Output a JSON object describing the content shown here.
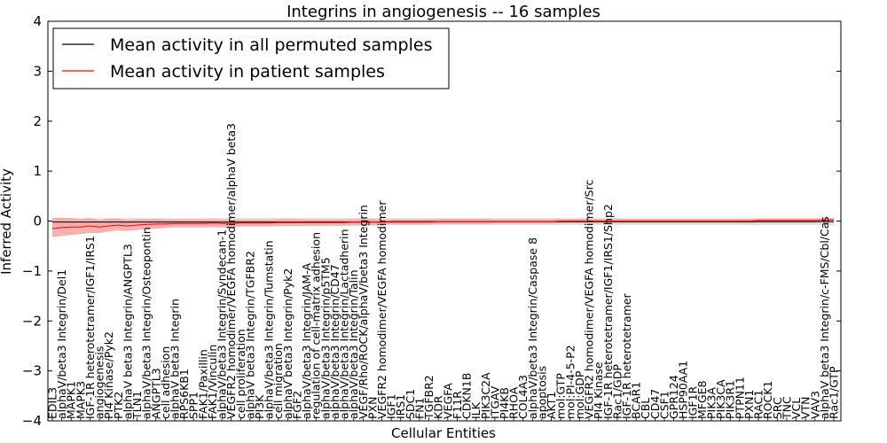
{
  "chart_data": {
    "type": "line",
    "title": "Integrins in angiogenesis -- 16 samples",
    "xlabel": "Cellular Entities",
    "ylabel": "Inferred Activity",
    "ylim": [
      -4,
      4
    ],
    "yticks": [
      -4,
      -3,
      -2,
      -1,
      0,
      1,
      2,
      3,
      4
    ],
    "grid": false,
    "legend_position": "top-left",
    "categories": [
      "EDIL3",
      "alphaV/beta3 Integrin/Del1",
      "MAPK1",
      "MAPK3",
      "IGF-1R heterotetramer/IGF1/IRS1",
      "angiogenesis",
      "PI4 Kinase/Pyk2",
      "PTK2",
      "alphaV beta3 Integrin/ANGPTL3",
      "TLN1",
      "alphaV/beta3 Integrin/Osteopontin",
      "ANGPTL3",
      "cell adhesion",
      "alphaV beta3 Integrin",
      "RPS6KB1",
      "SPP1",
      "FAK1/Paxillin",
      "FAK1/Vinculin",
      "alphaV/beta3 Integrin/Syndecan-1",
      "VEGFR2 homodimer/VEGFA homodimer/alphaV beta3",
      "cell proliferation",
      "alphaV beta3 Integrin/TGFBR2",
      "PI3K",
      "alphaV/beta3 Integrin/Tumstatin",
      "cell migration",
      "alphaV beta3 Integrin/Pyk2",
      "FGF2",
      "alphaV/beta3 Integrin/JAM-A",
      "regulation of cell-matrix adhesion",
      "alphaV/beta3 Integrin/p5TM5",
      "alphaV/beta3 Integrin/CD47",
      "alphaV/beta3 Integrin/Lactadherin",
      "alphaV/beta3 Integrin/Talin",
      "VEGF/Rho/ROCK/alphaV/beta3 Integrin",
      "PXN",
      "VEGFR2 homodimer/VEGFA homodimer",
      "IGF1",
      "IRS1",
      "SDC1",
      "FN1",
      "TGFBR2",
      "KDR",
      "VEGFA",
      "F11R",
      "CDKN1B",
      "ILK",
      "PIK3C2A",
      "ITGAV",
      "PI4KB",
      "RHOA",
      "COL4A3",
      "alphaV/beta3 Integrin/Caspase 8",
      "apoptosis",
      "AKT1",
      "mol:GTP",
      "mol:PI-4-5-P2",
      "mol:GDP",
      "VEGFR2 homodimer/VEGFA homodimer/Src",
      "PI4 Kinase",
      "IGF-1R heterotetramer/IGF1/IRS1/Shp2",
      "Rac1/GDP",
      "IGF-1R heterotetramer",
      "BCAR1",
      "CBL",
      "CD47",
      "CSF1",
      "GPR124",
      "HSP90AA1",
      "IGF1R",
      "MFGE8",
      "PIK3A",
      "PIK3CA",
      "PIK3R1",
      "PTPN11",
      "PXN1",
      "RAC1",
      "ROCK1",
      "SRC",
      "TNC",
      "VCL",
      "VTN",
      "VAV3",
      "alphaV beta3 Integrin/c-FMS/Cbl/Cas",
      "Rac1/GTP"
    ],
    "series": [
      {
        "name": "Mean activity in all permuted samples",
        "color": "#000000",
        "values": [
          -0.02,
          -0.02,
          -0.02,
          -0.02,
          -0.02,
          -0.02,
          -0.02,
          -0.02,
          -0.02,
          -0.02,
          -0.02,
          -0.02,
          -0.02,
          -0.02,
          -0.02,
          -0.02,
          -0.02,
          -0.02,
          -0.02,
          -0.02,
          -0.02,
          -0.02,
          -0.02,
          -0.02,
          -0.02,
          -0.02,
          -0.02,
          -0.02,
          -0.02,
          -0.02,
          -0.02,
          -0.02,
          -0.02,
          -0.02,
          -0.02,
          -0.02,
          -0.01,
          -0.01,
          -0.01,
          -0.01,
          -0.01,
          -0.01,
          -0.01,
          -0.01,
          -0.01,
          -0.01,
          -0.01,
          -0.01,
          -0.01,
          -0.01,
          -0.01,
          -0.01,
          -0.01,
          -0.01,
          -0.01,
          -0.01,
          -0.01,
          -0.01,
          -0.01,
          -0.01,
          -0.01,
          -0.01,
          -0.01,
          -0.01,
          -0.01,
          -0.01,
          -0.01,
          -0.01,
          -0.01,
          -0.01,
          -0.01,
          -0.01,
          -0.01,
          -0.01,
          -0.01,
          -0.01,
          -0.01,
          -0.01,
          -0.01,
          -0.01,
          -0.01,
          -0.01,
          -0.01,
          -0.01
        ],
        "lower": [
          -0.1,
          -0.1,
          -0.1,
          -0.1,
          -0.1,
          -0.1,
          -0.1,
          -0.1,
          -0.1,
          -0.1,
          -0.1,
          -0.1,
          -0.1,
          -0.1,
          -0.1,
          -0.1,
          -0.1,
          -0.1,
          -0.1,
          -0.1,
          -0.1,
          -0.1,
          -0.1,
          -0.1,
          -0.1,
          -0.1,
          -0.1,
          -0.1,
          -0.1,
          -0.1,
          -0.1,
          -0.1,
          -0.1,
          -0.1,
          -0.1,
          -0.1,
          -0.08,
          -0.08,
          -0.08,
          -0.08,
          -0.08,
          -0.08,
          -0.08,
          -0.08,
          -0.08,
          -0.08,
          -0.08,
          -0.08,
          -0.08,
          -0.08,
          -0.08,
          -0.08,
          -0.08,
          -0.08,
          -0.08,
          -0.08,
          -0.08,
          -0.08,
          -0.08,
          -0.08,
          -0.08,
          -0.08,
          -0.08,
          -0.08,
          -0.08,
          -0.08,
          -0.08,
          -0.08,
          -0.08,
          -0.08,
          -0.08,
          -0.08,
          -0.08,
          -0.08,
          -0.08,
          -0.08,
          -0.08,
          -0.08,
          -0.08,
          -0.08,
          -0.08,
          -0.08,
          -0.08,
          -0.08
        ],
        "upper": [
          0.06,
          0.06,
          0.06,
          0.06,
          0.06,
          0.06,
          0.06,
          0.06,
          0.06,
          0.06,
          0.06,
          0.06,
          0.06,
          0.06,
          0.06,
          0.06,
          0.06,
          0.06,
          0.06,
          0.06,
          0.06,
          0.06,
          0.06,
          0.06,
          0.06,
          0.06,
          0.06,
          0.06,
          0.06,
          0.06,
          0.06,
          0.06,
          0.06,
          0.06,
          0.06,
          0.06,
          0.06,
          0.06,
          0.06,
          0.06,
          0.06,
          0.06,
          0.06,
          0.06,
          0.06,
          0.06,
          0.06,
          0.06,
          0.06,
          0.06,
          0.06,
          0.06,
          0.06,
          0.06,
          0.06,
          0.06,
          0.06,
          0.06,
          0.06,
          0.06,
          0.06,
          0.06,
          0.06,
          0.06,
          0.06,
          0.06,
          0.06,
          0.06,
          0.06,
          0.06,
          0.06,
          0.06,
          0.06,
          0.06,
          0.06,
          0.06,
          0.06,
          0.06,
          0.06,
          0.06,
          0.06,
          0.06,
          0.06,
          0.06
        ],
        "band_color": "#cccccc"
      },
      {
        "name": "Mean activity in patient samples",
        "color": "#ff0000",
        "values": [
          -0.15,
          -0.13,
          -0.12,
          -0.12,
          -0.1,
          -0.12,
          -0.1,
          -0.08,
          -0.1,
          -0.08,
          -0.07,
          -0.06,
          -0.06,
          -0.05,
          -0.05,
          -0.05,
          -0.05,
          -0.04,
          -0.05,
          -0.05,
          -0.04,
          -0.04,
          -0.04,
          -0.04,
          -0.03,
          -0.03,
          -0.03,
          -0.03,
          -0.03,
          -0.03,
          -0.03,
          -0.03,
          -0.02,
          -0.02,
          -0.02,
          -0.02,
          -0.02,
          -0.02,
          -0.02,
          -0.02,
          -0.02,
          -0.01,
          -0.01,
          -0.01,
          -0.01,
          -0.01,
          -0.01,
          -0.01,
          -0.01,
          -0.01,
          -0.01,
          -0.01,
          -0.01,
          -0.01,
          0,
          0,
          0,
          0,
          0,
          0,
          0,
          0,
          0,
          0,
          0,
          0,
          0,
          0,
          0,
          0,
          0,
          0,
          0,
          0,
          0,
          0.01,
          0.01,
          0.01,
          0.01,
          0.01,
          0.01,
          0.01,
          0.02,
          0.02
        ],
        "lower": [
          -0.32,
          -0.3,
          -0.28,
          -0.26,
          -0.24,
          -0.24,
          -0.21,
          -0.19,
          -0.2,
          -0.18,
          -0.16,
          -0.15,
          -0.14,
          -0.13,
          -0.13,
          -0.13,
          -0.13,
          -0.12,
          -0.13,
          -0.13,
          -0.11,
          -0.11,
          -0.11,
          -0.11,
          -0.1,
          -0.1,
          -0.1,
          -0.09,
          -0.09,
          -0.09,
          -0.09,
          -0.09,
          -0.08,
          -0.08,
          -0.08,
          -0.07,
          -0.07,
          -0.07,
          -0.07,
          -0.07,
          -0.07,
          -0.06,
          -0.06,
          -0.06,
          -0.06,
          -0.06,
          -0.06,
          -0.05,
          -0.05,
          -0.05,
          -0.05,
          -0.05,
          -0.05,
          -0.05,
          -0.04,
          -0.04,
          -0.04,
          -0.04,
          -0.04,
          -0.04,
          -0.04,
          -0.04,
          -0.04,
          -0.04,
          -0.04,
          -0.04,
          -0.04,
          -0.04,
          -0.04,
          -0.04,
          -0.04,
          -0.04,
          -0.04,
          -0.04,
          -0.04,
          -0.03,
          -0.03,
          -0.03,
          -0.03,
          -0.03,
          -0.03,
          -0.03,
          -0.02,
          -0.02
        ],
        "upper": [
          0.06,
          0.07,
          0.06,
          0.04,
          0.06,
          0.02,
          0.05,
          0.05,
          0.02,
          0.04,
          0.04,
          0.04,
          0.03,
          0.03,
          0.03,
          0.03,
          0.03,
          0.04,
          0.03,
          0.03,
          0.03,
          0.03,
          0.03,
          0.03,
          0.04,
          0.04,
          0.04,
          0.03,
          0.03,
          0.03,
          0.03,
          0.03,
          0.04,
          0.04,
          0.04,
          0.03,
          0.03,
          0.03,
          0.03,
          0.03,
          0.03,
          0.04,
          0.04,
          0.04,
          0.04,
          0.04,
          0.04,
          0.03,
          0.03,
          0.03,
          0.03,
          0.03,
          0.03,
          0.03,
          0.04,
          0.04,
          0.04,
          0.04,
          0.04,
          0.04,
          0.04,
          0.04,
          0.04,
          0.04,
          0.04,
          0.04,
          0.04,
          0.04,
          0.04,
          0.04,
          0.04,
          0.04,
          0.04,
          0.04,
          0.04,
          0.05,
          0.05,
          0.05,
          0.05,
          0.05,
          0.05,
          0.05,
          0.06,
          0.06
        ],
        "band_color": "#f4a3a3"
      }
    ]
  }
}
